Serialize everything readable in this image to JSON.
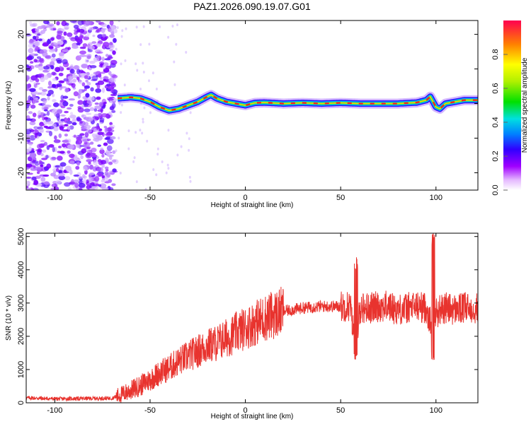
{
  "title": "PAZ1.2026.090.19.07.G01",
  "chart_data": [
    {
      "type": "heatmap",
      "name": "spectrogram",
      "title": "PAZ1.2026.090.19.07.G01",
      "xlabel": "Height of straight line (km)",
      "ylabel": "Frequency (Hz)",
      "xlim": [
        -115,
        122
      ],
      "ylim": [
        -25,
        24
      ],
      "xticks": [
        -100,
        -50,
        0,
        50,
        100
      ],
      "yticks": [
        -20,
        -10,
        0,
        10,
        20
      ],
      "noise_region_x": [
        -115,
        -68
      ],
      "ridge": {
        "x": [
          -67,
          -60,
          -55,
          -50,
          -45,
          -40,
          -35,
          -30,
          -25,
          -20,
          -18,
          -15,
          -10,
          -5,
          0,
          5,
          10,
          20,
          30,
          40,
          50,
          60,
          70,
          80,
          90,
          95,
          97,
          100,
          102,
          105,
          110,
          115,
          122
        ],
        "frequency": [
          1.5,
          1.8,
          1.5,
          0.5,
          -1,
          -2,
          -1.5,
          -0.5,
          0.5,
          2,
          2.5,
          1.5,
          0.5,
          0,
          -0.5,
          0.2,
          0.3,
          0,
          0.2,
          0,
          0.2,
          0,
          0,
          0,
          0.3,
          1,
          2,
          -1,
          -1.5,
          0,
          0.5,
          1,
          1
        ]
      },
      "colorbar": {
        "label": "Normalized spectral amplitude",
        "ticks": [
          "0.0",
          "0.2",
          "0.4",
          "0.6",
          "0.8"
        ],
        "range": [
          0,
          1
        ]
      }
    },
    {
      "type": "line",
      "name": "snr",
      "xlabel": "Height of straight line (km)",
      "ylabel": "SNR (10 * v/v)",
      "xlim": [
        -115,
        122
      ],
      "ylim": [
        0,
        5100
      ],
      "xticks": [
        -100,
        -50,
        0,
        50,
        100
      ],
      "yticks": [
        0,
        1000,
        2000,
        3000,
        4000,
        5000
      ],
      "series": [
        {
          "name": "SNR",
          "color": "#e8332e",
          "x": [
            -115,
            -100,
            -80,
            -70,
            -65,
            -60,
            -55,
            -50,
            -45,
            -40,
            -35,
            -30,
            -25,
            -20,
            -15,
            -10,
            -5,
            0,
            5,
            10,
            15,
            20,
            25,
            30,
            35,
            40,
            45,
            50,
            55,
            58,
            60,
            65,
            70,
            75,
            80,
            85,
            90,
            95,
            98,
            100,
            102,
            105,
            110,
            115,
            122
          ],
          "y": [
            150,
            120,
            130,
            140,
            250,
            380,
            520,
            700,
            900,
            1050,
            1250,
            1400,
            1550,
            1700,
            1800,
            1950,
            2100,
            2250,
            2400,
            2550,
            2650,
            2750,
            2800,
            2850,
            2880,
            2900,
            2900,
            2900,
            2920,
            1500,
            2850,
            2850,
            2900,
            2900,
            2800,
            2850,
            2900,
            2850,
            2200,
            2700,
            2800,
            2850,
            2800,
            2850,
            2850
          ]
        }
      ],
      "annotations": [
        {
          "x": 58,
          "min": 1230,
          "max": 4380
        },
        {
          "x": 98.5,
          "min": 1250,
          "max": 5100
        }
      ]
    }
  ]
}
